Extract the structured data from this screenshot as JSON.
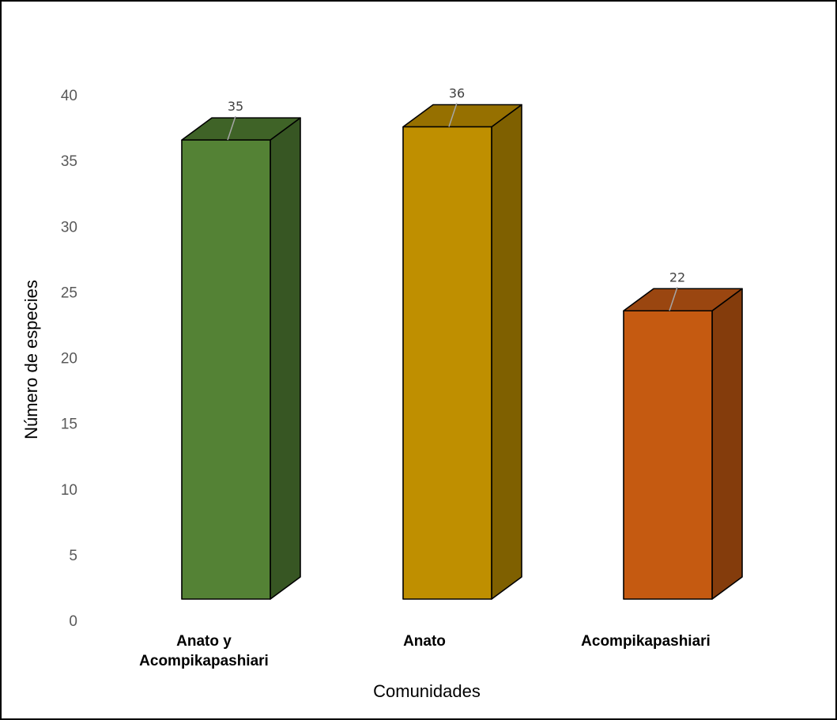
{
  "chart_data": {
    "type": "bar",
    "style": "3d-column",
    "categories": [
      [
        "Anato y",
        "Acompikapashiari"
      ],
      [
        "Anato"
      ],
      [
        "Acompikapashiari"
      ]
    ],
    "values": [
      35,
      36,
      22
    ],
    "data_labels": [
      "35",
      "36",
      "22"
    ],
    "colors": [
      {
        "front": "#548235",
        "side": "#375623",
        "top": "#3f6327"
      },
      {
        "front": "#bf8f00",
        "side": "#7f6000",
        "top": "#967000"
      },
      {
        "front": "#c55a11",
        "side": "#843c0c",
        "top": "#9a4610"
      }
    ],
    "xlabel": "Comunidades",
    "ylabel": "Número de especies",
    "ylim": [
      0,
      40
    ],
    "yticks": [
      0,
      5,
      10,
      15,
      20,
      25,
      30,
      35,
      40
    ],
    "grid": false,
    "legend": "none"
  }
}
